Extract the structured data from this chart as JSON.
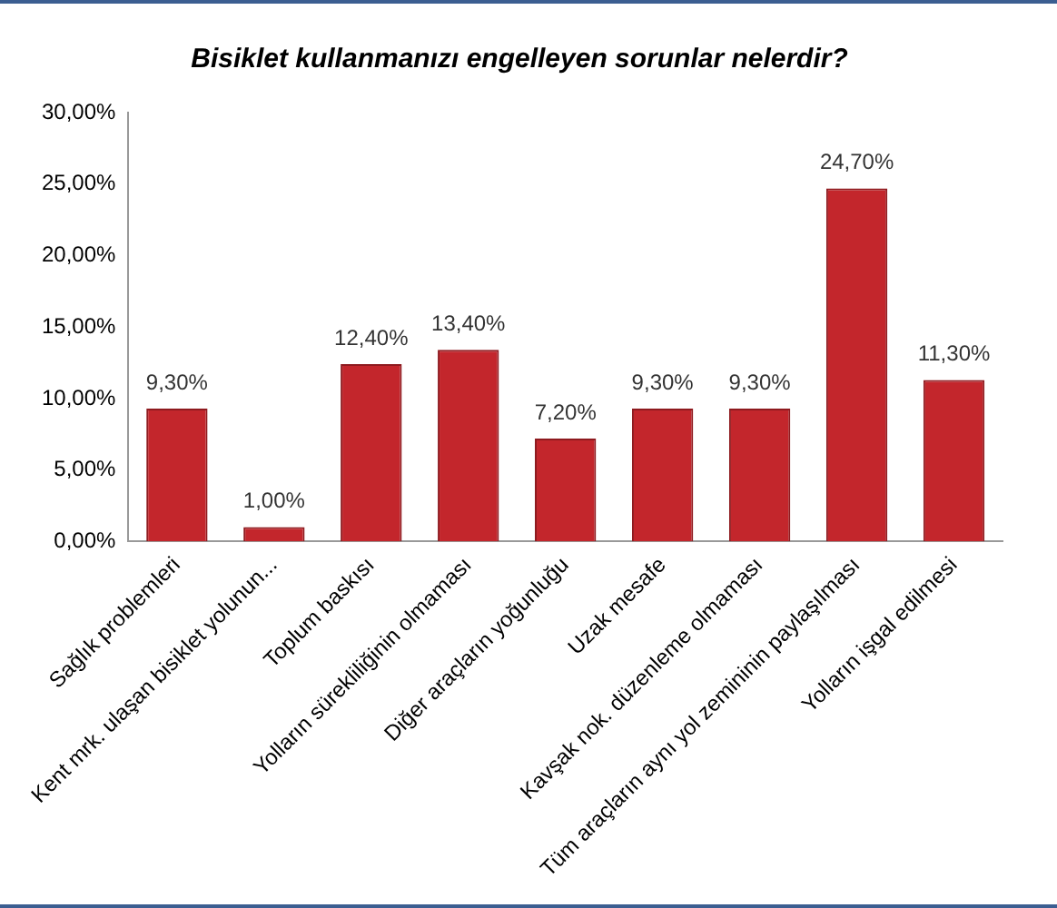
{
  "chart_data": {
    "type": "bar",
    "title": "Bisiklet kullanmanızı engelleyen sorunlar nelerdir?",
    "categories": [
      "Sağlık problemleri",
      "Kent mrk. ulaşan bisiklet yolunun...",
      "Toplum baskısı",
      "Yolların sürekliliğinin olmaması",
      "Diğer araçların yoğunluğu",
      "Uzak mesafe",
      "Kavşak nok. düzenleme olmaması",
      "Tüm araçların aynı yol zemininin paylaşılması",
      "Yolların işgal edilmesi"
    ],
    "values": [
      9.3,
      1.0,
      12.4,
      13.4,
      7.2,
      9.3,
      9.3,
      24.7,
      11.3
    ],
    "value_labels": [
      "9,30%",
      "1,00%",
      "12,40%",
      "13,40%",
      "7,20%",
      "9,30%",
      "9,30%",
      "24,70%",
      "11,30%"
    ],
    "color": "#c3262c",
    "ylim": [
      0,
      30
    ],
    "yticks": [
      {
        "value": 0,
        "label": "0,00%"
      },
      {
        "value": 5,
        "label": "5,00%"
      },
      {
        "value": 10,
        "label": "10,00%"
      },
      {
        "value": 15,
        "label": "15,00%"
      },
      {
        "value": 20,
        "label": "20,00%"
      },
      {
        "value": 25,
        "label": "25,00%"
      },
      {
        "value": 30,
        "label": "30,00%"
      }
    ],
    "grid": false,
    "legend": false
  }
}
